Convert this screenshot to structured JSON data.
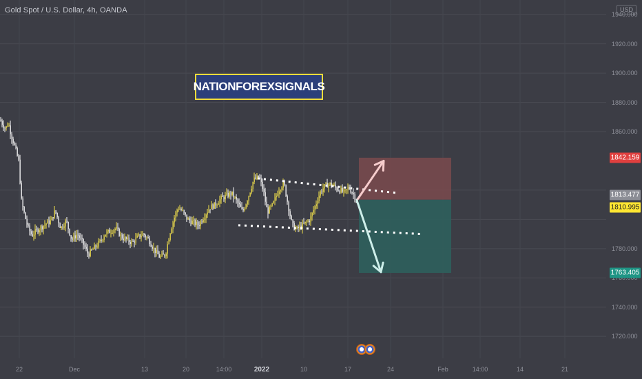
{
  "header": {
    "symbol_title": "Gold Spot / U.S. Dollar, 4h, OANDA",
    "currency": "USD"
  },
  "watermark": {
    "text": "NATIONFOREXSIGNALS",
    "bg_color": "#2c3f7a",
    "border_color": "#f2dc3a"
  },
  "colors": {
    "background": "#3c3d45",
    "candle_up": "#f5e24b",
    "candle_down": "#ffffff",
    "stop_zone": "#7a4a4e",
    "target_zone": "#2e5f5c",
    "arrow_up": "#f6cccc",
    "arrow_down": "#cdeee9",
    "dotted_line": "#ffffff"
  },
  "price_labels": [
    {
      "text": "1842.159",
      "bg": "#e0403f",
      "fg": "#ffffff"
    },
    {
      "text": "1813.477",
      "bg": "#8c8e96",
      "fg": "#ffffff"
    },
    {
      "text": "1810.995",
      "bg": "#ffe632",
      "fg": "#222222"
    },
    {
      "text": "1763.405",
      "bg": "#1f9585",
      "fg": "#ffffff"
    }
  ],
  "event_icons": [
    "us-flag-icon",
    "us-flag-icon"
  ],
  "chart_data": {
    "type": "candlestick",
    "title": "Gold Spot / U.S. Dollar, 4h, OANDA",
    "y_unit": "USD",
    "ylim": [
      1705,
      1950
    ],
    "y_ticks": [
      "1940.000",
      "1920.000",
      "1900.000",
      "1880.000",
      "1860.000",
      "1780.000",
      "1760.000",
      "1740.000",
      "1720.000"
    ],
    "x_ticks": [
      "22",
      "Dec",
      "13",
      "20",
      "14:00",
      "2022",
      "10",
      "17",
      "24",
      "Feb",
      "14:00",
      "14",
      "21"
    ],
    "bold_x_ticks": [
      "2022"
    ],
    "close_path": [
      [
        0,
        1868
      ],
      [
        4,
        1865
      ],
      [
        8,
        1862
      ],
      [
        12,
        1866
      ],
      [
        16,
        1858
      ],
      [
        20,
        1852
      ],
      [
        24,
        1845
      ],
      [
        28,
        1838
      ],
      [
        30,
        1815
      ],
      [
        34,
        1806
      ],
      [
        40,
        1795
      ],
      [
        46,
        1789
      ],
      [
        52,
        1792
      ],
      [
        58,
        1794
      ],
      [
        66,
        1797
      ],
      [
        74,
        1799
      ],
      [
        80,
        1806
      ],
      [
        88,
        1794
      ],
      [
        96,
        1799
      ],
      [
        104,
        1786
      ],
      [
        112,
        1790
      ],
      [
        120,
        1784
      ],
      [
        128,
        1776
      ],
      [
        136,
        1780
      ],
      [
        144,
        1784
      ],
      [
        152,
        1790
      ],
      [
        160,
        1792
      ],
      [
        168,
        1794
      ],
      [
        176,
        1788
      ],
      [
        184,
        1786
      ],
      [
        192,
        1784
      ],
      [
        200,
        1788
      ],
      [
        208,
        1790
      ],
      [
        216,
        1786
      ],
      [
        224,
        1779
      ],
      [
        232,
        1774
      ],
      [
        240,
        1776
      ],
      [
        246,
        1790
      ],
      [
        252,
        1800
      ],
      [
        258,
        1808
      ],
      [
        264,
        1806
      ],
      [
        272,
        1800
      ],
      [
        280,
        1798
      ],
      [
        288,
        1796
      ],
      [
        296,
        1802
      ],
      [
        304,
        1808
      ],
      [
        312,
        1810
      ],
      [
        320,
        1814
      ],
      [
        328,
        1816
      ],
      [
        336,
        1818
      ],
      [
        344,
        1812
      ],
      [
        352,
        1805
      ],
      [
        360,
        1815
      ],
      [
        368,
        1827
      ],
      [
        376,
        1829
      ],
      [
        382,
        1820
      ],
      [
        388,
        1805
      ],
      [
        396,
        1810
      ],
      [
        404,
        1820
      ],
      [
        412,
        1825
      ],
      [
        418,
        1810
      ],
      [
        424,
        1796
      ],
      [
        430,
        1793
      ],
      [
        436,
        1795
      ],
      [
        442,
        1797
      ],
      [
        450,
        1800
      ],
      [
        458,
        1810
      ],
      [
        464,
        1818
      ],
      [
        470,
        1822
      ],
      [
        476,
        1824
      ],
      [
        482,
        1824
      ],
      [
        488,
        1821
      ],
      [
        494,
        1820
      ],
      [
        500,
        1818
      ],
      [
        506,
        1822
      ],
      [
        512,
        1818
      ],
      [
        518,
        1813
      ]
    ],
    "channel": {
      "upper": {
        "from": [
          374,
          1828
        ],
        "to": [
          578,
          1818
        ]
      },
      "lower": {
        "from": [
          346,
          1796
        ],
        "to": [
          612,
          1790
        ]
      }
    },
    "position": {
      "stop": 1842.159,
      "entry": 1813.477,
      "target": 1763.405,
      "start_x": 521,
      "end_x": 655
    },
    "arrows": [
      {
        "from": [
          518,
          1813
        ],
        "to": [
          557,
          1840
        ],
        "direction": "up"
      },
      {
        "from": [
          518,
          1813
        ],
        "to": [
          553,
          1764
        ],
        "direction": "down"
      }
    ]
  }
}
